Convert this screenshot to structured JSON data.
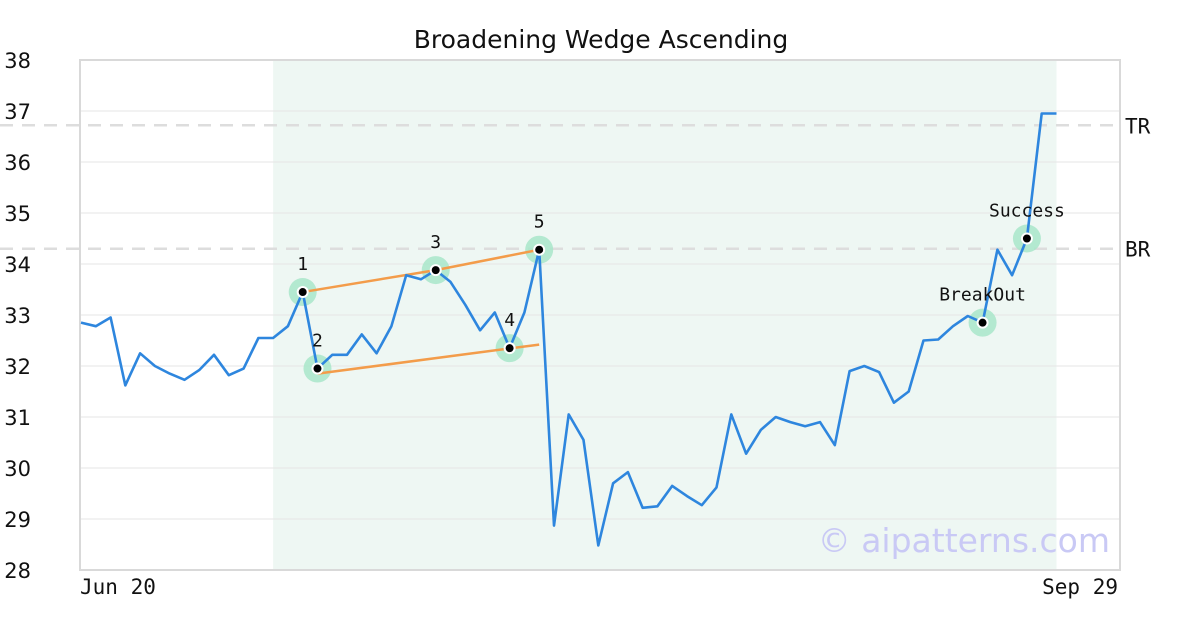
{
  "chart_data": {
    "type": "line",
    "title": "Broadening Wedge Ascending",
    "xlabel": "",
    "ylabel": "",
    "x_start_label": "Jun 20",
    "x_end_label": "Sep 29",
    "ylim": [
      28,
      38
    ],
    "yticks": [
      28,
      29,
      30,
      31,
      32,
      33,
      34,
      35,
      36,
      37,
      38
    ],
    "grid": "horizontal",
    "series": [
      {
        "color": "#2e86de",
        "values": [
          32.85,
          32.78,
          32.95,
          31.62,
          32.25,
          32.0,
          31.85,
          31.73,
          31.92,
          32.22,
          31.82,
          31.95,
          32.55,
          32.55,
          32.78,
          33.45,
          31.95,
          32.22,
          32.22,
          32.62,
          32.25,
          32.78,
          33.78,
          33.7,
          33.88,
          33.65,
          33.2,
          32.7,
          33.05,
          32.35,
          33.05,
          34.28,
          28.87,
          31.05,
          30.55,
          28.48,
          29.7,
          29.92,
          29.22,
          29.25,
          29.65,
          29.45,
          29.27,
          29.62,
          31.05,
          30.28,
          30.75,
          31.0,
          30.9,
          30.82,
          30.9,
          30.45,
          31.9,
          32.0,
          31.88,
          31.28,
          31.5,
          32.5,
          32.52,
          32.78,
          32.98,
          32.85,
          34.28,
          33.78,
          34.5,
          36.95,
          36.95
        ]
      }
    ],
    "pattern_zone": {
      "start_index": 13,
      "end_index": 66,
      "color": "#eef7f3"
    },
    "trendlines": [
      {
        "from": [
          15,
          33.45
        ],
        "to": [
          24,
          33.88
        ],
        "color": "#f39c4a"
      },
      {
        "from": [
          24,
          33.88
        ],
        "to": [
          31,
          34.28
        ],
        "color": "#f39c4a"
      },
      {
        "from": [
          16,
          31.85
        ],
        "to": [
          31,
          32.42
        ],
        "color": "#f39c4a"
      }
    ],
    "reference_lines": [
      {
        "label": "TR",
        "value": 36.72,
        "color": "#dddddd"
      },
      {
        "label": "BR",
        "value": 34.3,
        "color": "#dddddd"
      }
    ],
    "points": [
      {
        "label": "1",
        "index": 15,
        "value": 33.45,
        "label_pos": "above"
      },
      {
        "label": "2",
        "index": 16,
        "value": 31.95,
        "label_pos": "above"
      },
      {
        "label": "3",
        "index": 24,
        "value": 33.88,
        "label_pos": "above"
      },
      {
        "label": "4",
        "index": 29,
        "value": 32.35,
        "label_pos": "above"
      },
      {
        "label": "5",
        "index": 31,
        "value": 34.28,
        "label_pos": "above"
      },
      {
        "label": "BreakOut",
        "index": 61,
        "value": 32.85,
        "label_pos": "above"
      },
      {
        "label": "Success",
        "index": 64,
        "value": 34.5,
        "label_pos": "above"
      }
    ],
    "marker_color": "#a8e6c9"
  },
  "watermark": "© aipatterns.com"
}
